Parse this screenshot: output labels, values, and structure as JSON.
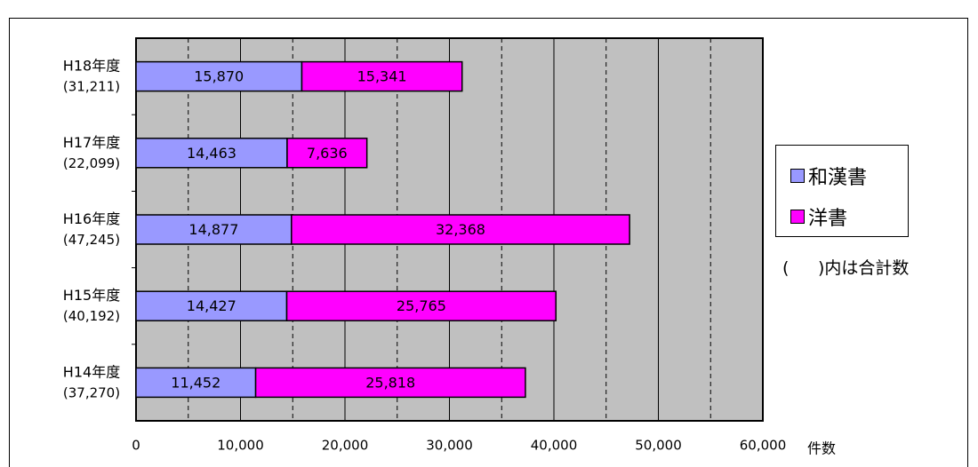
{
  "chart_data": {
    "type": "bar",
    "orientation": "horizontal",
    "stacked": true,
    "title": "",
    "xlabel": "件数",
    "ylabel": "",
    "xlim": [
      0,
      60000
    ],
    "x_ticks": [
      0,
      10000,
      20000,
      30000,
      40000,
      50000,
      60000
    ],
    "x_tick_labels": [
      "0",
      "10,000",
      "20,000",
      "30,000",
      "40,000",
      "50,000",
      "60,000"
    ],
    "grid": "vertical gridlines at every 5,000 (solid at 10,000 multiples, dashed between)",
    "categories": [
      "H18年度",
      "H17年度",
      "H16年度",
      "H15年度",
      "H14年度"
    ],
    "category_totals": [
      "(31,211)",
      "(22,099)",
      "(47,245)",
      "(40,192)",
      "(37,270)"
    ],
    "series": [
      {
        "name": "和漢書",
        "color": "#9999ff",
        "values": [
          15870,
          14463,
          14877,
          14427,
          11452
        ],
        "labels": [
          "15,870",
          "14,463",
          "14,877",
          "14,427",
          "11,452"
        ]
      },
      {
        "name": "洋書",
        "color": "#ff00ff",
        "values": [
          15341,
          7636,
          32368,
          25765,
          25818
        ],
        "labels": [
          "15,341",
          "7,636",
          "32,368",
          "25,765",
          "25,818"
        ]
      }
    ],
    "legend_position": "right",
    "legend_note": {
      "open": "(",
      "close": ")内は合計数"
    },
    "plot_background": "#c0c0c0"
  }
}
